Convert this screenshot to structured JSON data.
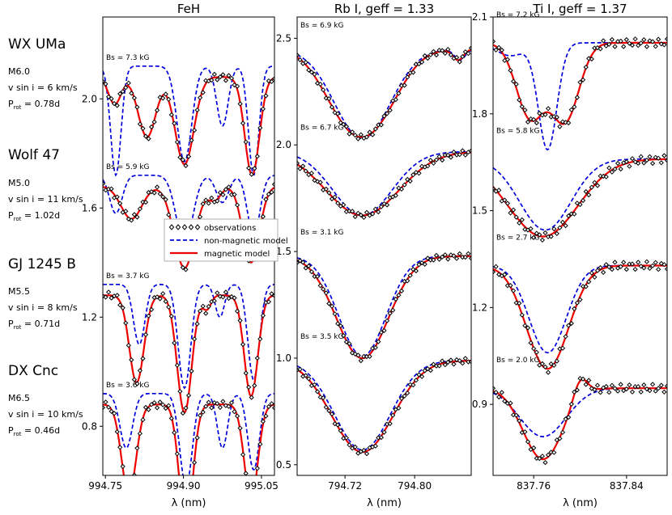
{
  "stars": [
    {
      "name": "WX UMa",
      "spt": "M6.0",
      "vsini": "v sin i = 6 km/s",
      "prot": "0.78d"
    },
    {
      "name": "Wolf 47",
      "spt": "M5.0",
      "vsini": "v sin i = 11 km/s",
      "prot": "1.02d"
    },
    {
      "name": "GJ 1245 B",
      "spt": "M5.5",
      "vsini": "v sin i = 8 km/s",
      "prot": "0.71d"
    },
    {
      "name": "DX Cnc",
      "spt": "M6.5",
      "vsini": "v sin i = 10 km/s",
      "prot": "0.46d"
    }
  ],
  "prot_label": "P",
  "prot_sub": "rot",
  "legend": {
    "observations": "observations",
    "nonmag": "non-magnetic model",
    "mag": "magnetic model"
  },
  "colors": {
    "obs": "#000000",
    "nonmag": "#0000dd",
    "mag": "#ee0000"
  },
  "chart_data": [
    {
      "type": "line",
      "title": "FeH",
      "xlabel": "λ (nm)",
      "ylabel": "",
      "xlim": [
        994.745,
        995.075
      ],
      "ylim": [
        0.62,
        2.3
      ],
      "xticks": [
        994.75,
        994.9,
        995.05
      ],
      "xtick_labels": [
        "994.75",
        "994.90",
        "995.05"
      ],
      "yticks": [
        0.8,
        1.2,
        1.6,
        2.0
      ],
      "ytick_labels": [
        "0.8",
        "1.2",
        "1.6",
        "2.0"
      ],
      "bs_labels": [
        "Bs = 7.3 kG",
        "Bs = 5.9 kG",
        "Bs = 3.7 kG",
        "Bs = 3.6 kG"
      ],
      "offsets": [
        2.0,
        1.6,
        1.2,
        0.8
      ],
      "model": "feh"
    },
    {
      "type": "line",
      "title": "Rb I, geff = 1.33",
      "xlabel": "λ (nm)",
      "ylabel": "",
      "xlim": [
        794.665,
        794.865
      ],
      "ylim": [
        0.45,
        2.6
      ],
      "xticks": [
        794.72,
        794.8
      ],
      "xtick_labels": [
        "794.72",
        "794.80"
      ],
      "yticks": [
        0.5,
        1.0,
        1.5,
        2.0,
        2.5
      ],
      "ytick_labels": [
        "0.5",
        "1.0",
        "1.5",
        "2.0",
        "2.5"
      ],
      "bs_labels": [
        "Bs = 6.9 kG",
        "Bs = 6.7 kG",
        "Bs = 3.1 kG",
        "Bs = 3.5 kG"
      ],
      "offsets": [
        2.45,
        1.97,
        1.48,
        0.99
      ],
      "model": "rb"
    },
    {
      "type": "line",
      "title": "Ti I, geff = 1.37",
      "xlabel": "λ (nm)",
      "ylabel": "",
      "xlim": [
        837.725,
        837.875
      ],
      "ylim": [
        0.68,
        2.1
      ],
      "xticks": [
        837.76,
        837.84
      ],
      "xtick_labels": [
        "837.76",
        "837.84"
      ],
      "yticks": [
        0.9,
        1.2,
        1.5,
        1.8,
        2.1
      ],
      "ytick_labels": [
        "0.9",
        "1.2",
        "1.5",
        "1.8",
        "2.1"
      ],
      "bs_labels": [
        "Bs = 7.2 kG",
        "Bs = 5.8 kG",
        "Bs = 2.7 kG",
        "Bs = 2.0 kG"
      ],
      "offsets": [
        2.02,
        1.66,
        1.33,
        0.95
      ],
      "model": "ti"
    }
  ]
}
